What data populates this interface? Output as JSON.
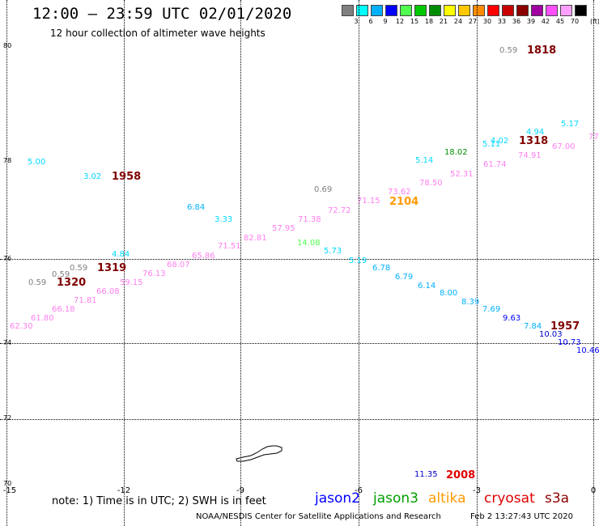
{
  "header": {
    "title": "12:00 – 23:59 UTC 02/01/2020",
    "subtitle": "12 hour collection of altimeter wave heights"
  },
  "scale": {
    "unit": "(ft)",
    "items": [
      {
        "label": "3",
        "color": "#808080"
      },
      {
        "label": "6",
        "color": "#00ffff"
      },
      {
        "label": "9",
        "color": "#00b0ff"
      },
      {
        "label": "12",
        "color": "#0000ff"
      },
      {
        "label": "15",
        "color": "#50ff50"
      },
      {
        "label": "18",
        "color": "#00c800"
      },
      {
        "label": "21",
        "color": "#008c00"
      },
      {
        "label": "24",
        "color": "#ffff00"
      },
      {
        "label": "27",
        "color": "#ffc800"
      },
      {
        "label": "30",
        "color": "#ff8c00"
      },
      {
        "label": "33",
        "color": "#ff0000"
      },
      {
        "label": "36",
        "color": "#c80000"
      },
      {
        "label": "39",
        "color": "#8c0000"
      },
      {
        "label": "42",
        "color": "#a000a0"
      },
      {
        "label": "45",
        "color": "#ff50ff"
      },
      {
        "label": "70",
        "color": "#ffa0ff"
      },
      {
        "label": "",
        "color": "#000000"
      }
    ]
  },
  "axes": {
    "y_labels": [
      "80",
      "78",
      "76",
      "74",
      "72",
      "70"
    ],
    "x_labels": [
      "-15",
      "-12",
      "-9",
      "-6",
      "-3",
      "0"
    ]
  },
  "observations": [
    {
      "text": "0.59",
      "color": "#808080"
    },
    {
      "text": "5.00",
      "color": "#00d8ff"
    },
    {
      "text": "3.02",
      "color": "#00d8ff"
    },
    {
      "text": "0.69",
      "color": "#808080"
    },
    {
      "text": "6.84",
      "color": "#00b0ff"
    },
    {
      "text": "3.33",
      "color": "#00d8ff"
    },
    {
      "text": "5.14",
      "color": "#00d8ff"
    },
    {
      "text": "18.02",
      "color": "#008c00"
    },
    {
      "text": "5.11",
      "color": "#00d8ff"
    },
    {
      "text": "4.02",
      "color": "#00d8ff"
    },
    {
      "text": "4.94",
      "color": "#00d8ff"
    },
    {
      "text": "5.17",
      "color": "#00d8ff"
    },
    {
      "text": "77",
      "color": "#ff7ff0"
    },
    {
      "text": "67.00",
      "color": "#ff7ff0"
    },
    {
      "text": "74.91",
      "color": "#ff7ff0"
    },
    {
      "text": "61.74",
      "color": "#ff7ff0"
    },
    {
      "text": "52.31",
      "color": "#ff7ff0"
    },
    {
      "text": "78.50",
      "color": "#ff7ff0"
    },
    {
      "text": "73.62",
      "color": "#ff7ff0"
    },
    {
      "text": "71.15",
      "color": "#ff7ff0"
    },
    {
      "text": "72.72",
      "color": "#ff7ff0"
    },
    {
      "text": "71.38",
      "color": "#ff7ff0"
    },
    {
      "text": "57.95",
      "color": "#ff7ff0"
    },
    {
      "text": "82.81",
      "color": "#ff7ff0"
    },
    {
      "text": "71.51",
      "color": "#ff7ff0"
    },
    {
      "text": "65.86",
      "color": "#ff7ff0"
    },
    {
      "text": "14.08",
      "color": "#50ff50"
    },
    {
      "text": "5.73",
      "color": "#00d8ff"
    },
    {
      "text": "5.19",
      "color": "#00d8ff"
    },
    {
      "text": "6.78",
      "color": "#00b0ff"
    },
    {
      "text": "6.79",
      "color": "#00b0ff"
    },
    {
      "text": "6.14",
      "color": "#00b0ff"
    },
    {
      "text": "8.00",
      "color": "#00b0ff"
    },
    {
      "text": "8.39",
      "color": "#00b0ff"
    },
    {
      "text": "7.69",
      "color": "#00b0ff"
    },
    {
      "text": "9.63",
      "color": "#0000ff"
    },
    {
      "text": "7.84",
      "color": "#00b0ff"
    },
    {
      "text": "10.03",
      "color": "#0000c8"
    },
    {
      "text": "10.73",
      "color": "#0000ff"
    },
    {
      "text": "10.46",
      "color": "#0000ff"
    },
    {
      "text": "4.84",
      "color": "#00d8ff"
    },
    {
      "text": "0.59",
      "color": "#808080"
    },
    {
      "text": "0.59",
      "color": "#808080"
    },
    {
      "text": "0.59",
      "color": "#808080"
    },
    {
      "text": "68.07",
      "color": "#ff7ff0"
    },
    {
      "text": "76.13",
      "color": "#ff7ff0"
    },
    {
      "text": "59.15",
      "color": "#ff7ff0"
    },
    {
      "text": "66.08",
      "color": "#ff7ff0"
    },
    {
      "text": "71.81",
      "color": "#ff7ff0"
    },
    {
      "text": "66.18",
      "color": "#ff7ff0"
    },
    {
      "text": "61.80",
      "color": "#ff7ff0"
    },
    {
      "text": "62.30",
      "color": "#ff7ff0"
    },
    {
      "text": "11.35",
      "color": "#0000c8"
    }
  ],
  "time_labels": [
    {
      "text": "1818",
      "color": "#800000"
    },
    {
      "text": "1958",
      "color": "#800000"
    },
    {
      "text": "2104",
      "color": "#ff9900"
    },
    {
      "text": "1318",
      "color": "#800000"
    },
    {
      "text": "1319",
      "color": "#800000"
    },
    {
      "text": "1320",
      "color": "#800000"
    },
    {
      "text": "1957",
      "color": "#800000"
    },
    {
      "text": "2008",
      "color": "#e00000"
    }
  ],
  "footer": {
    "note": "note: 1) Time is in UTC; 2) SWH is in feet",
    "satellites": [
      {
        "name": "jason2",
        "color": "#0000ff"
      },
      {
        "name": "jason3",
        "color": "#00a000"
      },
      {
        "name": "altika",
        "color": "#ff9900"
      },
      {
        "name": "cryosat",
        "color": "#e00000"
      },
      {
        "name": "s3a",
        "color": "#8c0000"
      }
    ],
    "credit": "NOAA/NESDIS Center for Satellite Applications and Research",
    "timestamp": "Feb  2 13:27:43 UTC 2020"
  }
}
